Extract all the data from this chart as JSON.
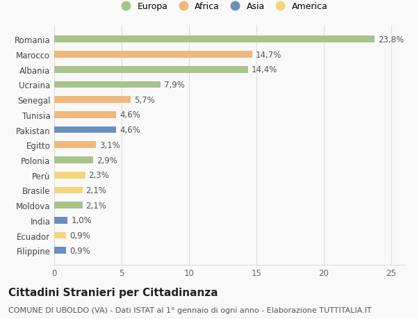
{
  "countries": [
    "Romania",
    "Marocco",
    "Albania",
    "Ucraina",
    "Senegal",
    "Tunisia",
    "Pakistan",
    "Egitto",
    "Polonia",
    "Perù",
    "Brasile",
    "Moldova",
    "India",
    "Ecuador",
    "Filippine"
  ],
  "values": [
    23.8,
    14.7,
    14.4,
    7.9,
    5.7,
    4.6,
    4.6,
    3.1,
    2.9,
    2.3,
    2.1,
    2.1,
    1.0,
    0.9,
    0.9
  ],
  "labels": [
    "23,8%",
    "14,7%",
    "14,4%",
    "7,9%",
    "5,7%",
    "4,6%",
    "4,6%",
    "3,1%",
    "2,9%",
    "2,3%",
    "2,1%",
    "2,1%",
    "1,0%",
    "0,9%",
    "0,9%"
  ],
  "continents": [
    "Europa",
    "Africa",
    "Europa",
    "Europa",
    "Africa",
    "Africa",
    "Asia",
    "Africa",
    "Europa",
    "America",
    "America",
    "Europa",
    "Asia",
    "America",
    "Asia"
  ],
  "colors": {
    "Europa": "#a8c48a",
    "Africa": "#f0b87a",
    "Asia": "#6a8fbf",
    "America": "#f5d57a"
  },
  "legend_order": [
    "Europa",
    "Africa",
    "Asia",
    "America"
  ],
  "legend_colors": [
    "#a8c48a",
    "#f0b87a",
    "#6a8fbf",
    "#f5d57a"
  ],
  "xlim": [
    0,
    26
  ],
  "xticks": [
    0,
    5,
    10,
    15,
    20,
    25
  ],
  "title": "Cittadini Stranieri per Cittadinanza",
  "subtitle": "COMUNE DI UBOLDO (VA) - Dati ISTAT al 1° gennaio di ogni anno - Elaborazione TUTTITALIA.IT",
  "background_color": "#f9f9f9",
  "bar_height": 0.45,
  "label_fontsize": 8.5,
  "tick_fontsize": 8.5,
  "title_fontsize": 11,
  "subtitle_fontsize": 8
}
